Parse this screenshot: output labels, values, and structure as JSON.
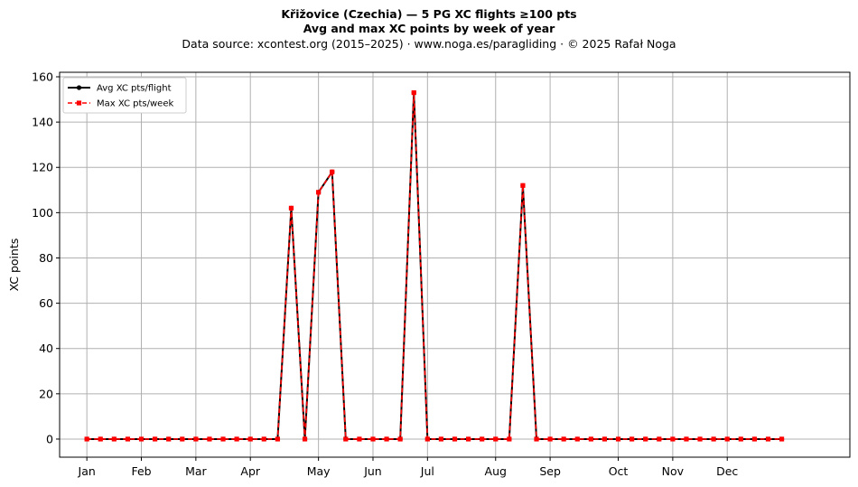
{
  "chart_data": {
    "type": "line",
    "title": "Křižovice (Czechia)  —  5 PG XC flights ≥100 pts",
    "subtitle": "Avg and max XC points by week of year",
    "source_line": "Data source: xcontest.org (2015–2025)  ·  www.noga.es/paragliding  ·  © 2025 Rafał Noga",
    "xlabel": "",
    "ylabel": "XC points",
    "xlim": [
      -2,
      56
    ],
    "ylim": [
      -8,
      162
    ],
    "yticks": [
      0,
      20,
      40,
      60,
      80,
      100,
      120,
      140,
      160
    ],
    "month_ticks": [
      {
        "label": "Jan",
        "x": 0
      },
      {
        "label": "Feb",
        "x": 4
      },
      {
        "label": "Mar",
        "x": 8
      },
      {
        "label": "Apr",
        "x": 12
      },
      {
        "label": "May",
        "x": 17
      },
      {
        "label": "Jun",
        "x": 21
      },
      {
        "label": "Jul",
        "x": 25
      },
      {
        "label": "Aug",
        "x": 30
      },
      {
        "label": "Sep",
        "x": 34
      },
      {
        "label": "Oct",
        "x": 39
      },
      {
        "label": "Nov",
        "x": 43
      },
      {
        "label": "Dec",
        "x": 47
      }
    ],
    "grid": true,
    "legend_position": "top-left",
    "x": [
      0,
      1,
      2,
      3,
      4,
      5,
      6,
      7,
      8,
      9,
      10,
      11,
      12,
      13,
      14,
      15,
      16,
      17,
      18,
      19,
      20,
      21,
      22,
      23,
      24,
      25,
      26,
      27,
      28,
      29,
      30,
      31,
      32,
      33,
      34,
      35,
      36,
      37,
      38,
      39,
      40,
      41,
      42,
      43,
      44,
      45,
      46,
      47,
      48,
      49,
      50,
      51
    ],
    "series": [
      {
        "name": "Avg XC pts/flight",
        "color": "#000000",
        "style": "solid",
        "marker": "circle",
        "values": [
          0,
          0,
          0,
          0,
          0,
          0,
          0,
          0,
          0,
          0,
          0,
          0,
          0,
          0,
          0,
          102,
          0,
          109,
          118,
          0,
          0,
          0,
          0,
          0,
          153,
          0,
          0,
          0,
          0,
          0,
          0,
          0,
          112,
          0,
          0,
          0,
          0,
          0,
          0,
          0,
          0,
          0,
          0,
          0,
          0,
          0,
          0,
          0,
          0,
          0,
          0,
          0
        ]
      },
      {
        "name": "Max XC pts/week",
        "color": "#ff0000",
        "style": "dashed",
        "marker": "square",
        "values": [
          0,
          0,
          0,
          0,
          0,
          0,
          0,
          0,
          0,
          0,
          0,
          0,
          0,
          0,
          0,
          102,
          0,
          109,
          118,
          0,
          0,
          0,
          0,
          0,
          153,
          0,
          0,
          0,
          0,
          0,
          0,
          0,
          112,
          0,
          0,
          0,
          0,
          0,
          0,
          0,
          0,
          0,
          0,
          0,
          0,
          0,
          0,
          0,
          0,
          0,
          0,
          0
        ]
      }
    ]
  }
}
